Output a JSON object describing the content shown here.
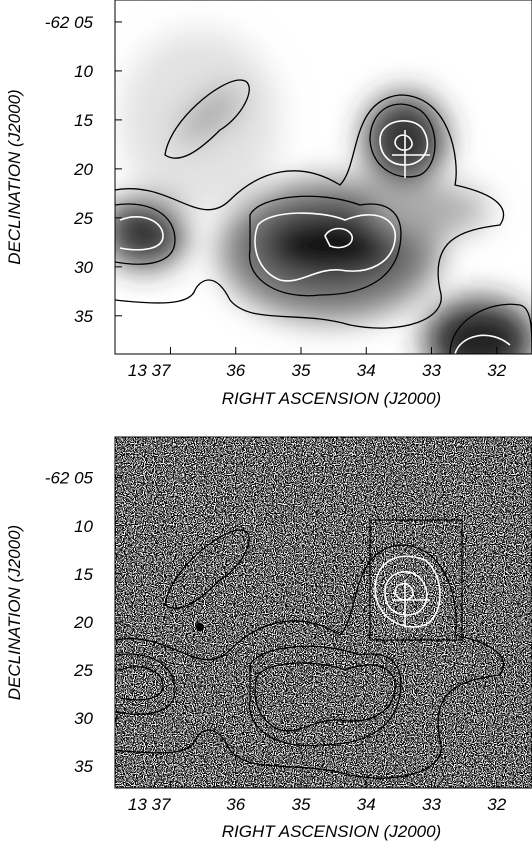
{
  "chart_data": [
    {
      "type": "contour",
      "xlabel": "RIGHT ASCENSION (J2000)",
      "ylabel": "DECLINATION (J2000)",
      "xlim": [
        37.85,
        31.46
      ],
      "ylim": [
        2.76,
        38.9
      ],
      "xticks": [
        {
          "value": 37,
          "label": "13 37"
        },
        36,
        35,
        34,
        33,
        32
      ],
      "yticks": [
        {
          "value": 5,
          "label": "-62 05"
        },
        10,
        15,
        20,
        25,
        30,
        35
      ]
    },
    {
      "type": "contour-overlay",
      "xlabel": "RIGHT ASCENSION (J2000)",
      "ylabel": "DECLINATION (J2000)",
      "xlim": [
        37.85,
        31.46
      ],
      "ylim": [
        0.77,
        37.27
      ],
      "xticks": [
        {
          "value": 37,
          "label": "13 37"
        },
        36,
        35,
        34,
        33,
        32
      ],
      "yticks": [
        {
          "value": 5,
          "label": "-62 05"
        },
        10,
        15,
        20,
        25,
        30,
        35
      ]
    }
  ]
}
